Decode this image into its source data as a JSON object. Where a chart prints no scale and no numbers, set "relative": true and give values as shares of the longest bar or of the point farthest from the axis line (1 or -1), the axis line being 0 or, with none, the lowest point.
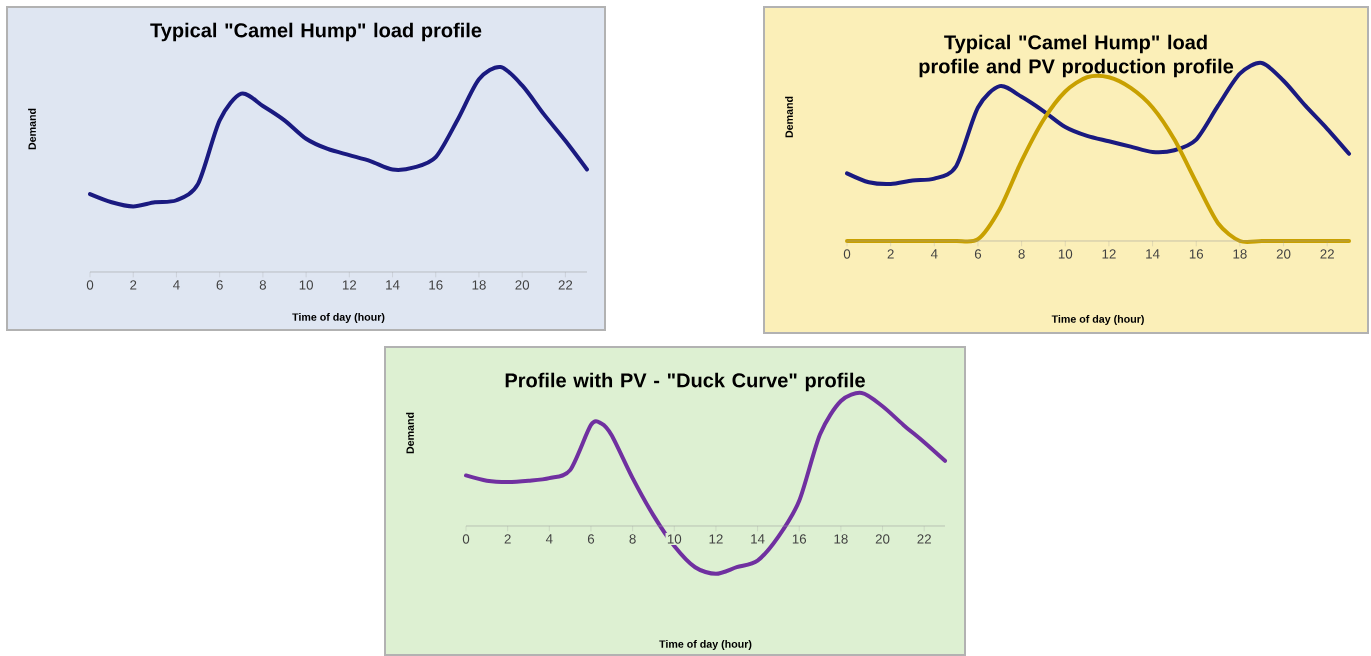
{
  "chart_data": [
    {
      "type": "line",
      "title": "Typical  \"Camel Hump\" load profile",
      "xlabel": "Time of day (hour)",
      "ylabel": "Demand",
      "relative": true,
      "tick_labels": "x",
      "x": [
        0,
        1,
        2,
        3,
        4,
        5,
        6,
        7,
        8,
        9,
        10,
        11,
        12,
        13,
        14,
        15,
        16,
        17,
        18,
        19,
        20,
        21,
        22,
        23
      ],
      "xlim": [
        0,
        23
      ],
      "xticks": [
        0,
        2,
        4,
        6,
        8,
        10,
        12,
        14,
        16,
        18,
        20,
        22
      ],
      "series": [
        {
          "color": "#1a1a80",
          "values": [
            0.38,
            0.34,
            0.32,
            0.34,
            0.35,
            0.43,
            0.74,
            0.87,
            0.81,
            0.74,
            0.65,
            0.6,
            0.57,
            0.54,
            0.5,
            0.51,
            0.56,
            0.74,
            0.94,
            1.0,
            0.91,
            0.77,
            0.64,
            0.5
          ]
        }
      ]
    },
    {
      "type": "line",
      "title": "Typical  \"Camel Hump\" load profile and PV production profile",
      "xlabel": "Time of day (hour)",
      "ylabel": "Demand",
      "relative": true,
      "tick_labels": "x",
      "x": [
        0,
        1,
        2,
        3,
        4,
        5,
        6,
        7,
        8,
        9,
        10,
        11,
        12,
        13,
        14,
        15,
        16,
        17,
        18,
        19,
        20,
        21,
        22,
        23
      ],
      "xlim": [
        0,
        23
      ],
      "xticks": [
        0,
        2,
        4,
        6,
        8,
        10,
        12,
        14,
        16,
        18,
        20,
        22
      ],
      "series": [
        {
          "color": "#1a1a80",
          "values": [
            0.38,
            0.33,
            0.32,
            0.34,
            0.35,
            0.42,
            0.75,
            0.87,
            0.81,
            0.73,
            0.64,
            0.59,
            0.56,
            0.53,
            0.5,
            0.51,
            0.57,
            0.76,
            0.94,
            1.0,
            0.9,
            0.76,
            0.63,
            0.49
          ]
        },
        {
          "color": "#c8a000",
          "values": [
            0,
            0,
            0,
            0,
            0,
            0,
            0.01,
            0.18,
            0.45,
            0.68,
            0.84,
            0.92,
            0.92,
            0.86,
            0.75,
            0.57,
            0.33,
            0.1,
            0,
            0,
            0,
            0,
            0,
            0
          ]
        }
      ]
    },
    {
      "type": "line",
      "title": "Profile with PV - \"Duck Curve\" profile",
      "xlabel": "Time of day (hour)",
      "ylabel": "Demand",
      "relative": true,
      "tick_labels": "x",
      "x": [
        0,
        1,
        2,
        3,
        4,
        5,
        6,
        6.5,
        7,
        8,
        9,
        10,
        11,
        12,
        13,
        14,
        15,
        16,
        17,
        18,
        19,
        20,
        21,
        22,
        23
      ],
      "xlim": [
        0,
        23
      ],
      "xticks": [
        0,
        2,
        4,
        6,
        8,
        10,
        12,
        14,
        16,
        18,
        20,
        22
      ],
      "series": [
        {
          "color": "#7030a0",
          "values": [
            0.38,
            0.34,
            0.33,
            0.34,
            0.36,
            0.42,
            0.76,
            0.77,
            0.68,
            0.36,
            0.08,
            -0.15,
            -0.31,
            -0.36,
            -0.31,
            -0.26,
            -0.08,
            0.19,
            0.69,
            0.94,
            1.0,
            0.9,
            0.76,
            0.63,
            0.49
          ]
        }
      ]
    }
  ]
}
